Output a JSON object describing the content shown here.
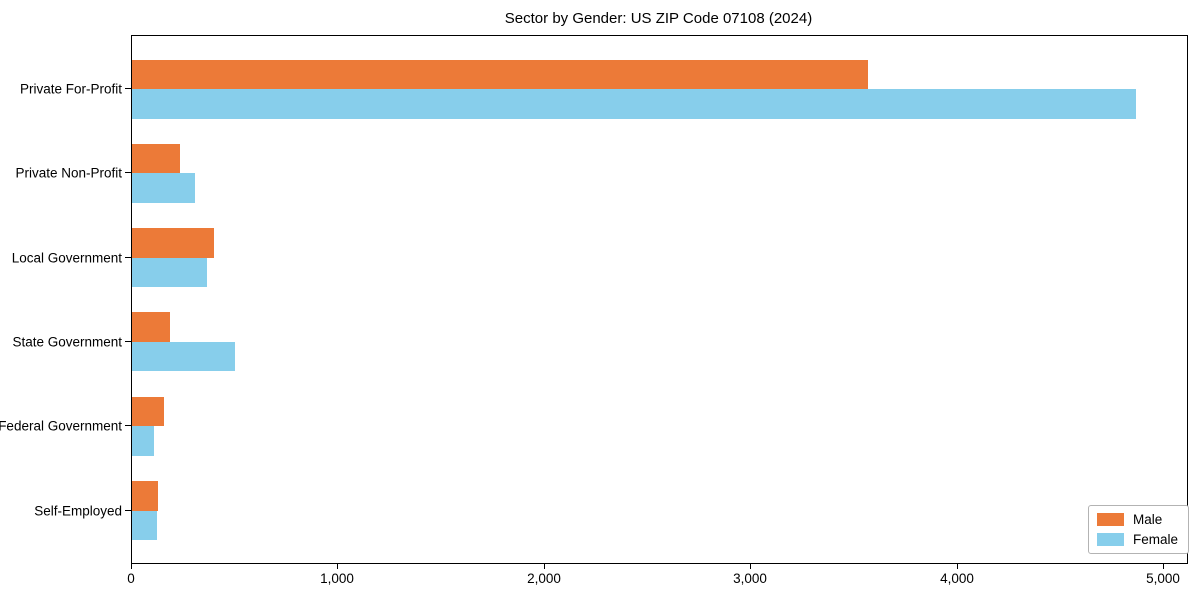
{
  "title": "Sector by Gender: US ZIP Code 07108 (2024)",
  "chart_data": {
    "type": "bar",
    "orientation": "horizontal",
    "title": "Sector by Gender: US ZIP Code 07108 (2024)",
    "categories": [
      "Private For-Profit",
      "Private Non-Profit",
      "Local Government",
      "State Government",
      "Federal Government",
      "Self-Employed"
    ],
    "series": [
      {
        "name": "Male",
        "color": "#EC7A38",
        "values": [
          3565,
          233,
          399,
          186,
          156,
          127
        ]
      },
      {
        "name": "Female",
        "color": "#87CEEB",
        "values": [
          4865,
          307,
          362,
          499,
          108,
          121
        ]
      }
    ],
    "xlabel": "",
    "ylabel": "",
    "xlim": [
      0,
      5110
    ],
    "x_ticks": [
      0,
      1000,
      2000,
      3000,
      4000,
      5000
    ],
    "x_tick_labels": [
      "0",
      "1,000",
      "2,000",
      "3,000",
      "4,000",
      "5,000"
    ],
    "grid": false,
    "legend": {
      "position": "lower right",
      "entries": [
        "Male",
        "Female"
      ]
    },
    "frame_color": "#000000",
    "background": "#ffffff",
    "text_color": "#000000"
  }
}
